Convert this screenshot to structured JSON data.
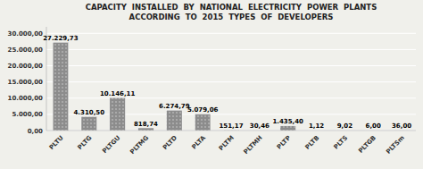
{
  "chart_data": {
    "type": "bar",
    "title": "CAPACITY  INSTALLED  BY  NATIONAL  ELECTRICITY  POWER  PLANTS\nACCORDING  TO  2015  TYPES  OF  DEVELOPERS",
    "categories": [
      "PLTU",
      "PLTG",
      "PLTGU",
      "PLTMG",
      "PLTD",
      "PLTA",
      "PLTM",
      "PLTMH",
      "PLTP",
      "PLTB",
      "PLTS",
      "PLTGB",
      "PLTSm"
    ],
    "values": [
      27229.73,
      4310.5,
      10146.11,
      818.74,
      6274.79,
      5079.06,
      151.17,
      30.46,
      1435.4,
      1.12,
      9.02,
      6.0,
      36.0
    ],
    "value_labels": [
      "27.229,73",
      "4.310,50",
      "10.146,11",
      "818,74",
      "6.274,79",
      "5.079,06",
      "151,17",
      "30,46",
      "1.435,40",
      "1,12",
      "9,02",
      "6,00",
      "36,00"
    ],
    "data_labels": true,
    "color": "#8c8c8c",
    "ylim": [
      0,
      32000
    ],
    "yticks": [
      {
        "value": 0,
        "label": "0,00"
      },
      {
        "value": 5000,
        "label": "5.000,00"
      },
      {
        "value": 10000,
        "label": "10.000,00"
      },
      {
        "value": 15000,
        "label": "15.000,00"
      },
      {
        "value": 20000,
        "label": "20.000,00"
      },
      {
        "value": 25000,
        "label": "25.000,00"
      },
      {
        "value": 30000,
        "label": "30.000,00"
      }
    ],
    "grid": true
  }
}
